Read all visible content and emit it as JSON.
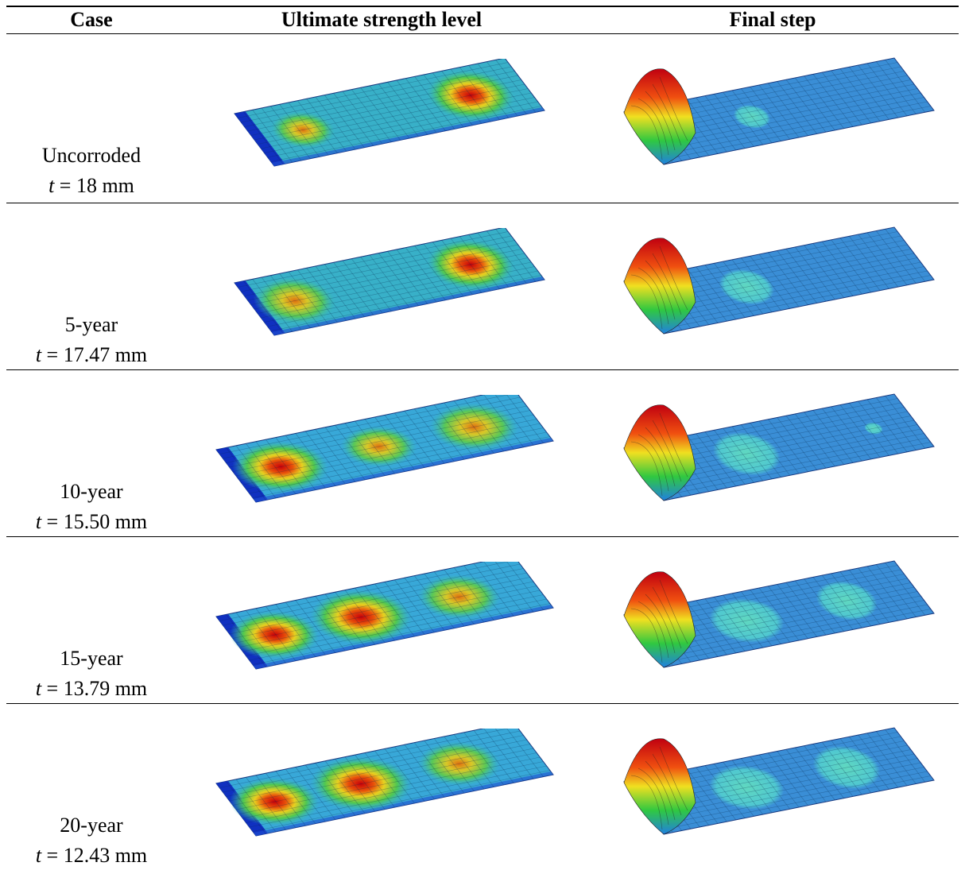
{
  "table": {
    "header": [
      "Case",
      "Ultimate strength level",
      "Final step"
    ],
    "rows": [
      {
        "label": "Uncorroded",
        "symbol": "t",
        "thickness": "= 18 mm"
      },
      {
        "label": "5-year",
        "symbol": "t",
        "thickness": "= 17.47 mm"
      },
      {
        "label": "10-year",
        "symbol": "t",
        "thickness": "= 15.50 mm"
      },
      {
        "label": "15-year",
        "symbol": "t",
        "thickness": "= 13.79 mm"
      },
      {
        "label": "20-year",
        "symbol": "t",
        "thickness": "= 12.43 mm"
      }
    ]
  }
}
